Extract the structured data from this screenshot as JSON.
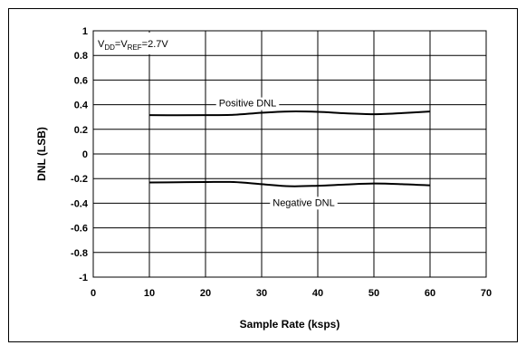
{
  "chart_data": {
    "type": "line",
    "xlabel": "Sample Rate (ksps)",
    "ylabel": "DNL (LSB)",
    "xlim": [
      0,
      70
    ],
    "ylim": [
      -1,
      1
    ],
    "x_ticks": [
      "0",
      "10",
      "20",
      "30",
      "40",
      "50",
      "60",
      "70"
    ],
    "y_ticks": [
      "1",
      "0.8",
      "0.6",
      "0.4",
      "0.2",
      "0",
      "-0.2",
      "-0.4",
      "-0.6",
      "-0.8",
      "-1"
    ],
    "grid": true,
    "condition_label": {
      "V": "V",
      "DD": "DD",
      "eq1": "=V",
      "REF": "REF",
      "eq2": "=2.7V"
    },
    "series": [
      {
        "name": "Positive DNL",
        "x": [
          10,
          15,
          20,
          25,
          30,
          35,
          40,
          45,
          50,
          55,
          60
        ],
        "y": [
          0.315,
          0.314,
          0.315,
          0.318,
          0.335,
          0.345,
          0.342,
          0.33,
          0.323,
          0.332,
          0.345
        ]
      },
      {
        "name": "Negative DNL",
        "x": [
          10,
          15,
          20,
          25,
          30,
          35,
          40,
          45,
          50,
          55,
          60
        ],
        "y": [
          -0.232,
          -0.23,
          -0.228,
          -0.228,
          -0.245,
          -0.262,
          -0.258,
          -0.248,
          -0.24,
          -0.245,
          -0.255
        ]
      }
    ]
  }
}
